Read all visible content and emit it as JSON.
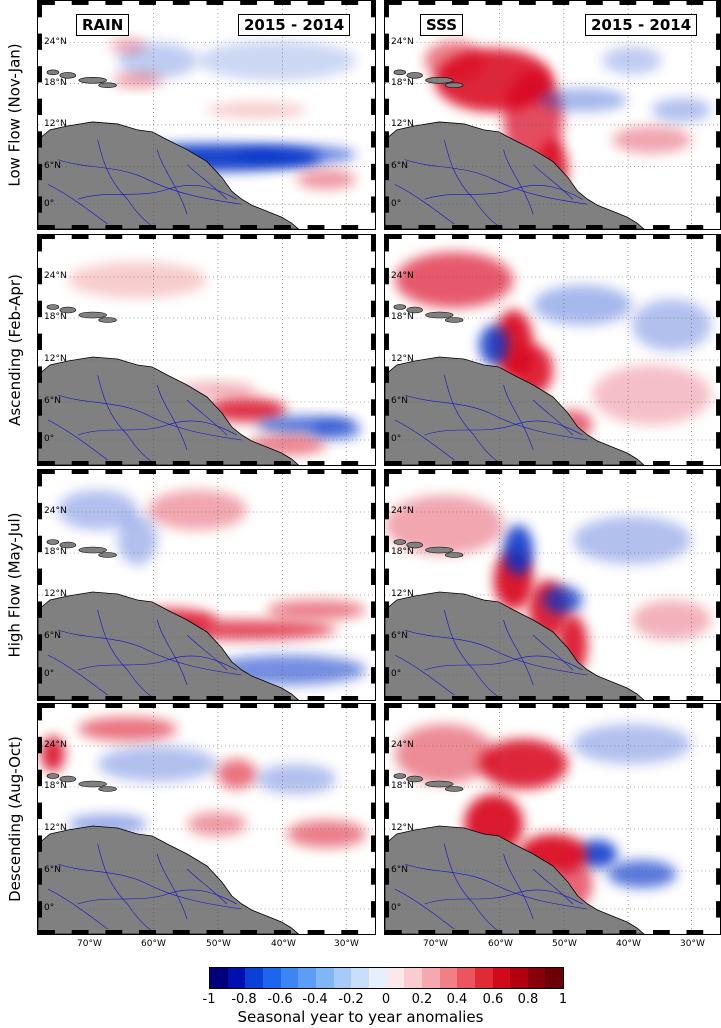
{
  "figure": {
    "column_tags": {
      "rain": "RAIN",
      "sss": "SSS",
      "period": "2015 - 2014"
    },
    "rows": [
      {
        "label": "Low Flow (Nov-Jan)"
      },
      {
        "label": "Ascending (Feb-Apr)"
      },
      {
        "label": "High Flow (May-Jul)"
      },
      {
        "label": "Descending (Aug-Oct)"
      }
    ],
    "lat_ticks": [
      "24°N",
      "18°N",
      "12°N",
      "6°N",
      "0°"
    ],
    "lon_ticks": [
      "70°W",
      "60°W",
      "50°W",
      "40°W",
      "30°W"
    ],
    "colorbar": {
      "ticks": [
        "-1",
        "-0.8",
        "-0.6",
        "-0.4",
        "-0.2",
        "0",
        "0.2",
        "0.4",
        "0.6",
        "0.8",
        "1"
      ],
      "title": "Seasonal year to year anomalies",
      "colors": [
        "#00007a",
        "#0010b0",
        "#0a3fd8",
        "#1b66ec",
        "#3b86f2",
        "#5c9ef4",
        "#80b6f6",
        "#a6cbf8",
        "#c8def9",
        "#e6effb",
        "#fbe8ea",
        "#f9ccd0",
        "#f5a8ae",
        "#f07f87",
        "#ea5560",
        "#e02a36",
        "#d00a18",
        "#b00010",
        "#8a000a",
        "#6a0006"
      ]
    },
    "colors": {
      "land": "#808080",
      "rivers": "#1010d0",
      "positive": "#d8001a",
      "negative": "#0030c8"
    }
  }
}
